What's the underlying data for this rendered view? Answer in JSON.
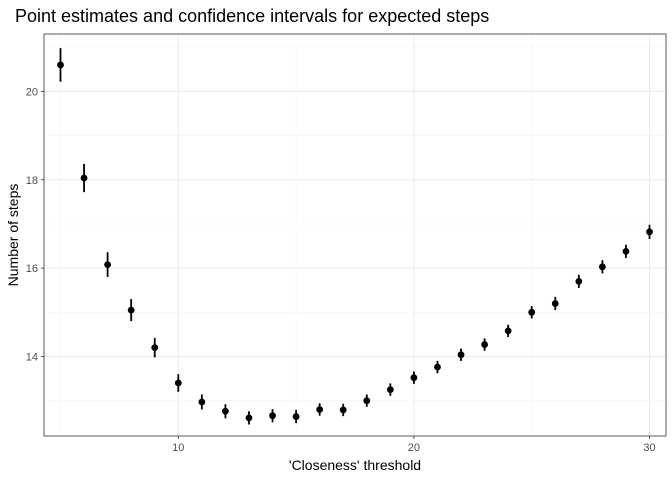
{
  "chart_data": {
    "type": "scatter",
    "title": "Point estimates and confidence intervals for expected steps",
    "xlabel": "'Closeness' threshold",
    "ylabel": "Number of steps",
    "xlim": [
      4.3,
      30.7
    ],
    "ylim": [
      12.2,
      21.3
    ],
    "x_ticks": [
      10,
      20,
      30
    ],
    "y_ticks": [
      14,
      16,
      18,
      20
    ],
    "x_minor_ticks": [
      5,
      15,
      25
    ],
    "y_minor_ticks": [
      13,
      15,
      17,
      19,
      21
    ],
    "grid": true,
    "legend": "none",
    "colors": {
      "point": "#000000",
      "grid_major": "#ebebeb",
      "grid_minor": "#f5f5f5",
      "panel_border": "#333333"
    },
    "points": [
      {
        "x": 5,
        "y": 20.6,
        "lo": 20.22,
        "hi": 20.98
      },
      {
        "x": 6,
        "y": 18.04,
        "lo": 17.72,
        "hi": 18.36
      },
      {
        "x": 7,
        "y": 16.08,
        "lo": 15.8,
        "hi": 16.36
      },
      {
        "x": 8,
        "y": 15.05,
        "lo": 14.8,
        "hi": 15.3
      },
      {
        "x": 9,
        "y": 14.2,
        "lo": 13.98,
        "hi": 14.42
      },
      {
        "x": 10,
        "y": 13.4,
        "lo": 13.2,
        "hi": 13.6
      },
      {
        "x": 11,
        "y": 12.97,
        "lo": 12.8,
        "hi": 13.14
      },
      {
        "x": 12,
        "y": 12.76,
        "lo": 12.6,
        "hi": 12.92
      },
      {
        "x": 13,
        "y": 12.61,
        "lo": 12.46,
        "hi": 12.76
      },
      {
        "x": 14,
        "y": 12.66,
        "lo": 12.51,
        "hi": 12.81
      },
      {
        "x": 15,
        "y": 12.64,
        "lo": 12.49,
        "hi": 12.79
      },
      {
        "x": 16,
        "y": 12.8,
        "lo": 12.66,
        "hi": 12.94
      },
      {
        "x": 17,
        "y": 12.79,
        "lo": 12.65,
        "hi": 12.93
      },
      {
        "x": 18,
        "y": 13.0,
        "lo": 12.86,
        "hi": 13.14
      },
      {
        "x": 19,
        "y": 13.25,
        "lo": 13.11,
        "hi": 13.39
      },
      {
        "x": 20,
        "y": 13.52,
        "lo": 13.38,
        "hi": 13.66
      },
      {
        "x": 21,
        "y": 13.76,
        "lo": 13.62,
        "hi": 13.9
      },
      {
        "x": 22,
        "y": 14.04,
        "lo": 13.9,
        "hi": 14.18
      },
      {
        "x": 23,
        "y": 14.27,
        "lo": 14.13,
        "hi": 14.41
      },
      {
        "x": 24,
        "y": 14.58,
        "lo": 14.44,
        "hi": 14.72
      },
      {
        "x": 25,
        "y": 15.0,
        "lo": 14.86,
        "hi": 15.14
      },
      {
        "x": 26,
        "y": 15.2,
        "lo": 15.05,
        "hi": 15.35
      },
      {
        "x": 27,
        "y": 15.7,
        "lo": 15.55,
        "hi": 15.85
      },
      {
        "x": 28,
        "y": 16.03,
        "lo": 15.88,
        "hi": 16.18
      },
      {
        "x": 29,
        "y": 16.38,
        "lo": 16.23,
        "hi": 16.53
      },
      {
        "x": 30,
        "y": 16.82,
        "lo": 16.66,
        "hi": 16.98
      }
    ]
  }
}
